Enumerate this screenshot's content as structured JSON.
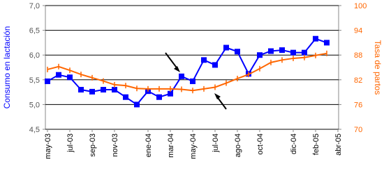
{
  "chart_data": {
    "type": "line",
    "y_label": "Consumo en lactación",
    "y2_label": "Tasa de partos",
    "categories": [
      "may-03",
      null,
      "jul-03",
      null,
      "sep-03",
      null,
      "nov-03",
      null,
      null,
      "ene-04",
      null,
      "mar-04",
      null,
      "may-04",
      null,
      "jul-04",
      null,
      "ago-04",
      null,
      "oct-04",
      null,
      null,
      "dic-04",
      null,
      "feb-05",
      null,
      "abr-05"
    ],
    "series": [
      {
        "name": "Consumo en lactación",
        "color": "#0000ff",
        "axis": "y",
        "marker": "square",
        "values": [
          5.47,
          5.6,
          5.55,
          5.3,
          5.26,
          5.3,
          5.3,
          5.15,
          5.0,
          5.27,
          5.15,
          5.22,
          5.57,
          5.47,
          5.9,
          5.8,
          6.15,
          6.07,
          5.62,
          6.0,
          6.08,
          6.1,
          6.05,
          6.05,
          6.33,
          6.25,
          null
        ]
      },
      {
        "name": "Tasa de partos",
        "color": "#ff6600",
        "axis": "y2",
        "marker": "dash",
        "values": [
          84.5,
          85.2,
          84.3,
          83.3,
          82.5,
          81.7,
          80.8,
          80.6,
          79.9,
          79.8,
          79.8,
          79.8,
          79.7,
          79.4,
          79.8,
          80.2,
          81.2,
          82.3,
          83.3,
          84.7,
          86.2,
          86.8,
          87.2,
          87.4,
          87.9,
          88.4,
          null
        ]
      }
    ],
    "ylim": [
      4.5,
      7.0
    ],
    "yticks": [
      {
        "value": 4.5,
        "label": "4,5"
      },
      {
        "value": 5.0,
        "label": "5,0"
      },
      {
        "value": 5.5,
        "label": "5,5"
      },
      {
        "value": 6.0,
        "label": "6,0"
      },
      {
        "value": 6.5,
        "label": "6,5"
      },
      {
        "value": 7.0,
        "label": "7,0"
      }
    ],
    "y2lim": [
      70,
      100
    ],
    "y2ticks": [
      70,
      76,
      82,
      88,
      94,
      100
    ],
    "grid": true
  }
}
